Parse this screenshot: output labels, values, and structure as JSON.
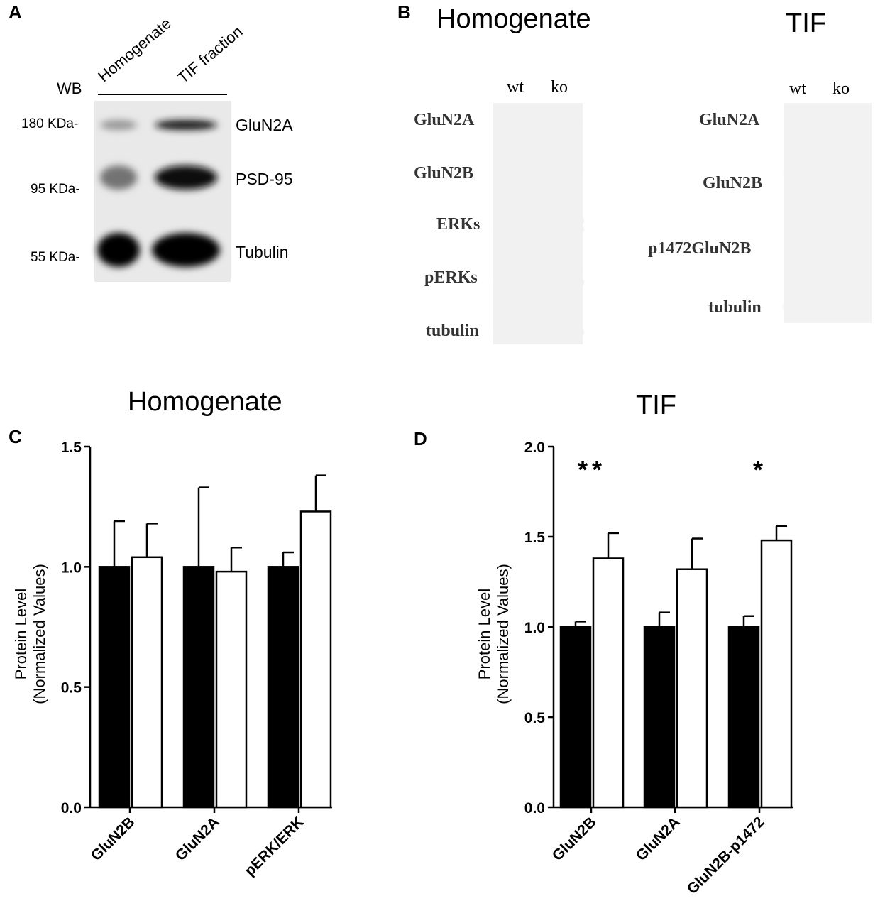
{
  "panels": {
    "A": {
      "letter": "A",
      "wb": "WB",
      "lanes": [
        "Homogenate",
        "TIF fraction"
      ],
      "rows": [
        {
          "marker": "180 KDa-",
          "protein": "GluN2A",
          "intensity": [
            0.35,
            0.9
          ]
        },
        {
          "marker": "95 KDa-",
          "protein": "PSD-95",
          "intensity": [
            0.5,
            0.95
          ]
        },
        {
          "marker": "55 KDa-",
          "protein": "Tubulin",
          "intensity": [
            1.0,
            1.0
          ]
        }
      ]
    },
    "B": {
      "letter": "B",
      "left": {
        "title": "Homogenate",
        "lanes": [
          "wt",
          "ko"
        ],
        "rows": [
          "GluN2A",
          "GluN2B",
          "ERKs",
          "pERKs",
          "tubulin"
        ]
      },
      "right": {
        "title": "TIF",
        "lanes": [
          "wt",
          "ko"
        ],
        "rows": [
          "GluN2A",
          "GluN2B",
          "p1472GluN2B",
          "tubulin"
        ]
      }
    }
  },
  "chart_data": [
    {
      "id": "C",
      "letter": "C",
      "type": "bar",
      "title": "Homogenate",
      "ylabel_line1": "Protein Level",
      "ylabel_line2": "(Normalized Values)",
      "categories": [
        "GluN2B",
        "GluN2A",
        "pERK/ERK"
      ],
      "ylim": [
        0,
        1.5
      ],
      "yticks": [
        "0.0",
        "0.5",
        "1.0",
        "1.5"
      ],
      "series": [
        {
          "fill": "#000000",
          "values": [
            1.0,
            1.0,
            1.0
          ],
          "errors": [
            0.19,
            0.33,
            0.06
          ]
        },
        {
          "fill": "#ffffff",
          "values": [
            1.04,
            0.98,
            1.23
          ],
          "errors": [
            0.14,
            0.1,
            0.15
          ]
        }
      ],
      "significance": [
        "",
        "",
        ""
      ]
    },
    {
      "id": "D",
      "letter": "D",
      "type": "bar",
      "title": "TIF",
      "ylabel_line1": "Protein Level",
      "ylabel_line2": "(Normalized Values)",
      "categories": [
        "GluN2B",
        "GluN2A",
        "GluN2B-p1472"
      ],
      "ylim": [
        0,
        2.0
      ],
      "yticks": [
        "0.0",
        "0.5",
        "1.0",
        "1.5",
        "2.0"
      ],
      "series": [
        {
          "fill": "#000000",
          "values": [
            1.0,
            1.0,
            1.0
          ],
          "errors": [
            0.03,
            0.08,
            0.06
          ]
        },
        {
          "fill": "#ffffff",
          "values": [
            1.38,
            1.32,
            1.48
          ],
          "errors": [
            0.14,
            0.17,
            0.08
          ]
        }
      ],
      "significance": [
        "**",
        "",
        "*"
      ]
    }
  ]
}
